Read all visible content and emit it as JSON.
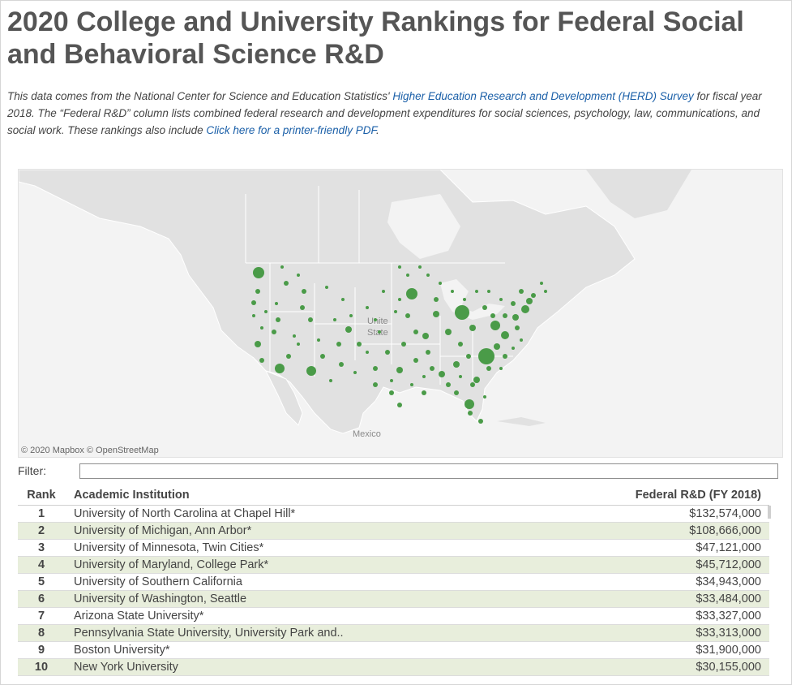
{
  "title": "2020 College and University Rankings for Federal Social and Behavioral Science R&D",
  "intro": {
    "text_before_link1": "This data comes from the National Center for Science and Education Statistics' ",
    "link1": "Higher Education Research and Development (HERD) Survey",
    "text_after_link1": " for fiscal year 2018. The “Federal R&D” column lists combined federal research and development expenditures for social sciences, psychology, law, communications, and social work. These rankings also include ",
    "link2": "Click here for a printer-friendly PDF",
    "text_end": "."
  },
  "map": {
    "attribution": "© 2020 Mapbox  © OpenStreetMap",
    "label_us_line1": "Unite",
    "label_us_line2": "State",
    "label_mexico": "Mexico",
    "marker_color": "#4a9b48"
  },
  "filter": {
    "label": "Filter:",
    "value": ""
  },
  "table": {
    "headers": {
      "rank": "Rank",
      "institution": "Academic Institution",
      "federal_rd": "Federal R&D (FY 2018)"
    },
    "rows": [
      {
        "rank": "1",
        "institution": "University of North Carolina at Chapel Hill*",
        "federal_rd": "$132,574,000"
      },
      {
        "rank": "2",
        "institution": "University of Michigan, Ann Arbor*",
        "federal_rd": "$108,666,000"
      },
      {
        "rank": "3",
        "institution": "University of Minnesota, Twin Cities*",
        "federal_rd": "$47,121,000"
      },
      {
        "rank": "4",
        "institution": "University of Maryland, College Park*",
        "federal_rd": "$45,712,000"
      },
      {
        "rank": "5",
        "institution": "University of Southern California",
        "federal_rd": "$34,943,000"
      },
      {
        "rank": "6",
        "institution": "University of Washington, Seattle",
        "federal_rd": "$33,484,000"
      },
      {
        "rank": "7",
        "institution": "Arizona State University*",
        "federal_rd": "$33,327,000"
      },
      {
        "rank": "8",
        "institution": "Pennsylvania State University, University Park and..",
        "federal_rd": "$33,313,000"
      },
      {
        "rank": "9",
        "institution": "Boston University*",
        "federal_rd": "$31,900,000"
      },
      {
        "rank": "10",
        "institution": "New York University",
        "federal_rd": "$30,155,000"
      }
    ]
  }
}
